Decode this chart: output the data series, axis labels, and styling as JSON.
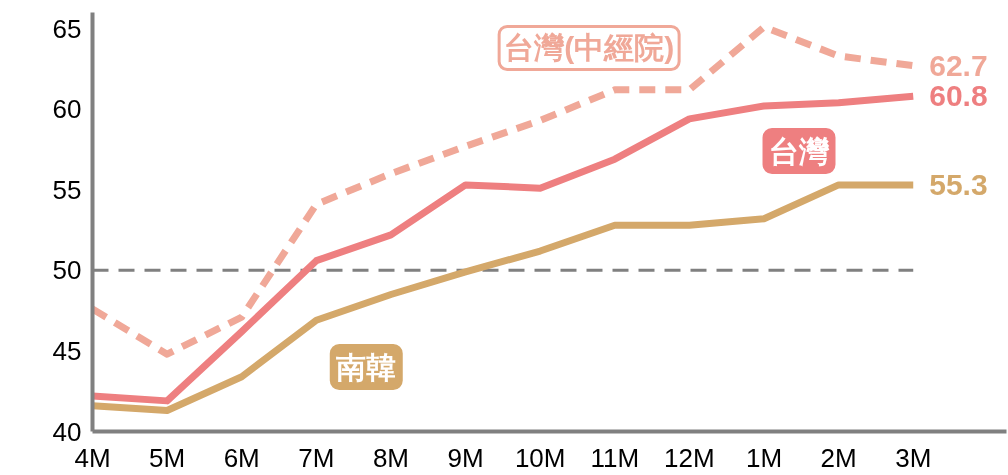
{
  "chart_data": {
    "type": "line",
    "categories": [
      "4M",
      "5M",
      "6M",
      "7M",
      "8M",
      "9M",
      "10M",
      "11M",
      "12M",
      "1M",
      "2M",
      "3M"
    ],
    "series": [
      {
        "name": "台灣(中經院)",
        "color": "#f0a898",
        "line_style": "dashed",
        "values": [
          47.6,
          44.8,
          47.1,
          54.1,
          56.0,
          57.7,
          59.3,
          61.2,
          61.2,
          65.1,
          63.3,
          62.7
        ],
        "value_labels": [
          null,
          null,
          null,
          null,
          null,
          null,
          null,
          null,
          null,
          null,
          null,
          "62.7"
        ]
      },
      {
        "name": "台灣",
        "color": "#ee7f80",
        "line_style": "solid",
        "values": [
          42.2,
          41.9,
          46.2,
          50.6,
          52.2,
          55.3,
          55.1,
          56.9,
          59.4,
          60.2,
          60.4,
          60.8
        ],
        "value_labels": [
          null,
          null,
          null,
          null,
          null,
          null,
          null,
          null,
          null,
          null,
          null,
          "60.8"
        ]
      },
      {
        "name": "南韓",
        "color": "#d4a86a",
        "line_style": "solid",
        "values": [
          41.6,
          41.3,
          43.4,
          46.9,
          48.5,
          49.9,
          51.2,
          52.8,
          52.8,
          53.2,
          55.3,
          55.3
        ],
        "value_labels": [
          null,
          null,
          null,
          null,
          null,
          null,
          null,
          null,
          null,
          null,
          null,
          "55.3"
        ]
      }
    ],
    "ylim": [
      40,
      66
    ],
    "yticks": [
      40,
      45,
      50,
      55,
      60,
      65
    ],
    "grid": false,
    "marker": "none",
    "ref_lines": [
      {
        "axis": "y",
        "value": 50,
        "label": null,
        "color": "#808080",
        "line_style": "dashed"
      }
    ]
  }
}
